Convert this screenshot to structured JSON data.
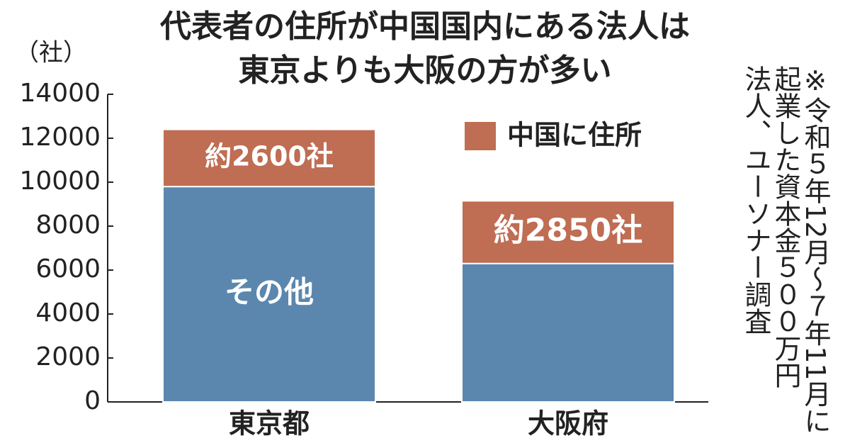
{
  "chart_data": {
    "type": "stacked_bar",
    "title_lines": [
      "代表者の住所が中国国内にある法人は",
      "東京よりも大阪の方が多い"
    ],
    "y_label": "（社）",
    "categories": [
      "東京都",
      "大阪府"
    ],
    "series": [
      {
        "name": "その他",
        "color": "#5b87ae",
        "values": [
          9800,
          6300
        ]
      },
      {
        "name": "中国に住所",
        "color": "#bf6d53",
        "values": [
          2600,
          2850
        ],
        "value_labels": [
          "約2600社",
          "約2850社"
        ]
      }
    ],
    "ylim": [
      0,
      14000
    ],
    "yticks": [
      0,
      2000,
      4000,
      6000,
      8000,
      10000,
      12000,
      14000
    ],
    "note_lines": [
      "※令和５年12月～７年11月に",
      "起業した資本金５００万円",
      "法人、ユーソナー調査"
    ]
  }
}
